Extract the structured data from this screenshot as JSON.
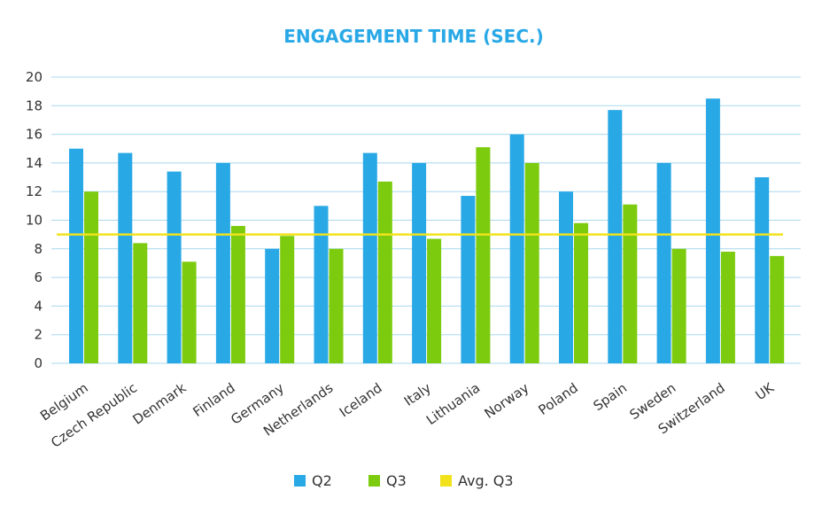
{
  "chart_data": {
    "type": "bar",
    "title": "ENGAGEMENT TIME (SEC.)",
    "xlabel": "",
    "ylabel": "",
    "ylim": [
      0,
      20
    ],
    "yticks": [
      0,
      2,
      4,
      6,
      8,
      10,
      12,
      14,
      16,
      18,
      20
    ],
    "grid": true,
    "legend_position": "bottom",
    "categories": [
      "Belgium",
      "Czech Republic",
      "Denmark",
      "Finland",
      "Germany",
      "Netherlands",
      "Iceland",
      "Italy",
      "Lithuania",
      "Norway",
      "Poland",
      "Spain",
      "Sweden",
      "Switzerland",
      "UK"
    ],
    "series": [
      {
        "name": "Q2",
        "color": "#29a8e6",
        "values": [
          15,
          14.7,
          13.4,
          14,
          8,
          11,
          14.7,
          14,
          11.7,
          16,
          12,
          17.7,
          14,
          18.5,
          13
        ]
      },
      {
        "name": "Q3",
        "color": "#7ccb0e",
        "values": [
          12,
          8.4,
          7.1,
          9.6,
          8.9,
          8,
          12.7,
          8.7,
          15.1,
          14,
          9.8,
          11.1,
          8,
          7.8,
          7.5
        ]
      }
    ],
    "reference_line": {
      "name": "Avg. Q3",
      "color": "#f2e21b",
      "value": 9
    },
    "gridline_color": "#a9d8ee"
  }
}
